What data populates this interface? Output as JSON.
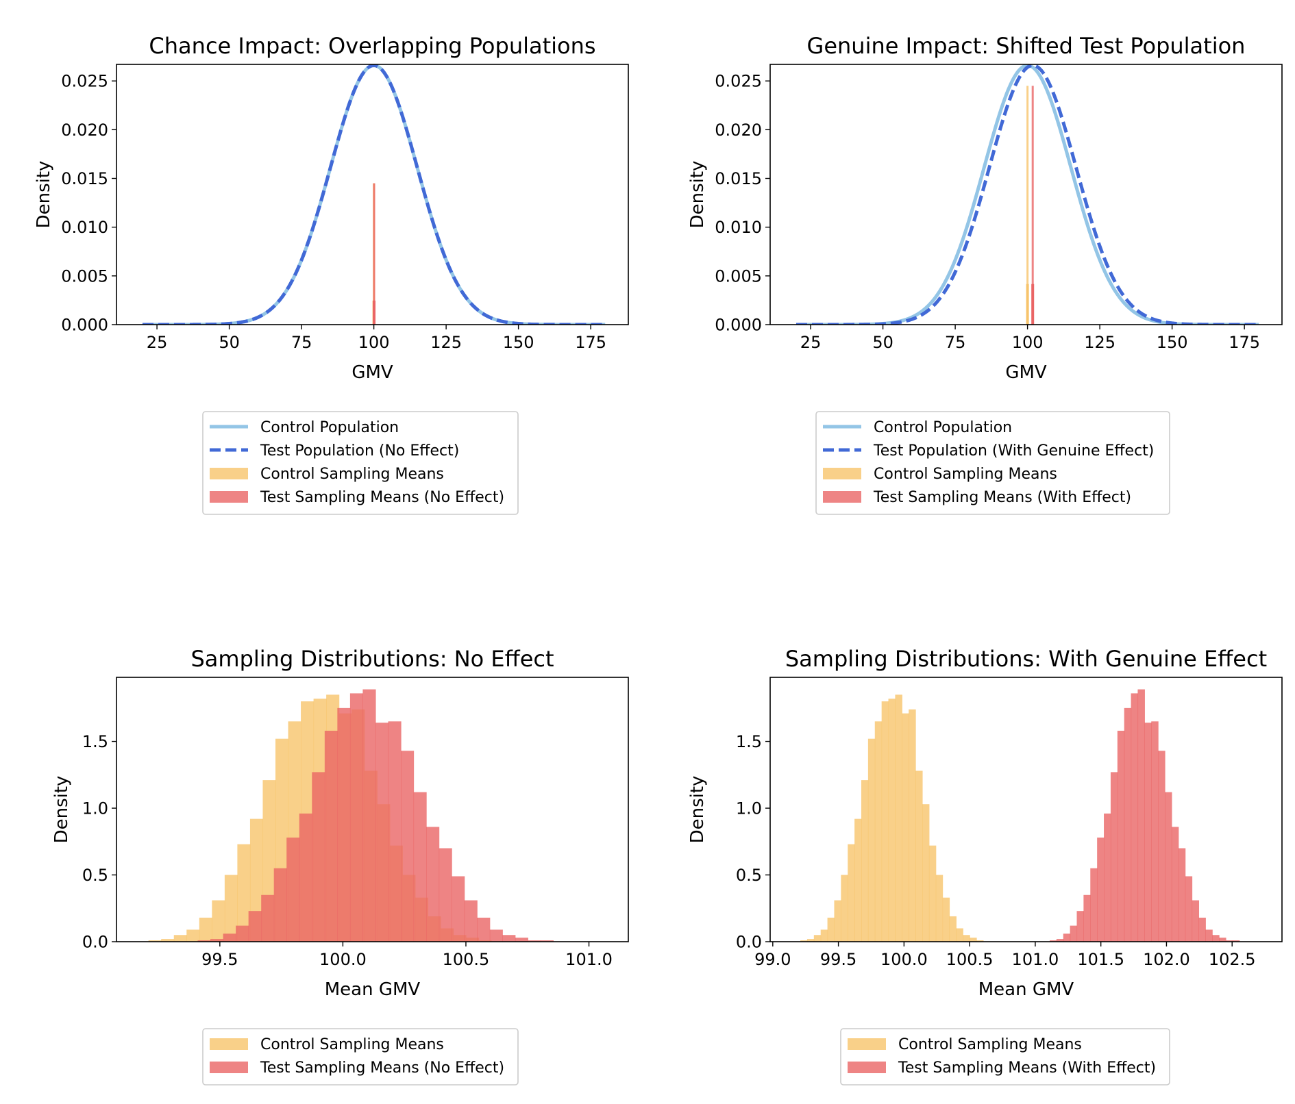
{
  "colors": {
    "control_line": "#93c5e6",
    "test_line": "#4169d6",
    "control_hist": "#f7c46c",
    "test_hist": "#ea6565",
    "overlap_hist": "#ee6a3c"
  },
  "chart_data": [
    {
      "type": "line",
      "title": "Chance Impact: Overlapping Populations",
      "xlabel": "GMV",
      "ylabel": "Density",
      "xlim": [
        11,
        188
      ],
      "ylim": [
        0,
        0.0267
      ],
      "xticks": [
        25,
        50,
        75,
        100,
        125,
        150,
        175
      ],
      "yticks": [
        0.0,
        0.005,
        0.01,
        0.015,
        0.02,
        0.025
      ],
      "ytick_labels": [
        "0.000",
        "0.005",
        "0.010",
        "0.015",
        "0.020",
        "0.025"
      ],
      "series": [
        {
          "name": "Control Population",
          "kind": "normal_pdf",
          "mean": 100,
          "sd": 15,
          "x_range": [
            20,
            180
          ],
          "style": "solid",
          "color_key": "control_line"
        },
        {
          "name": "Test Population (No Effect)",
          "kind": "normal_pdf",
          "mean": 100,
          "sd": 15,
          "x_range": [
            20,
            180
          ],
          "style": "dashed",
          "color_key": "test_line"
        },
        {
          "name": "Control Sampling Means",
          "kind": "spike",
          "x": 100.0,
          "height": 0.0145,
          "color_key": "control_hist"
        },
        {
          "name": "Test Sampling Means (No Effect)",
          "kind": "spike",
          "x": 100.1,
          "height": 0.0145,
          "color_key": "test_hist"
        }
      ],
      "legend": {
        "placement": "below",
        "entries": [
          "Control Population",
          "Test Population (No Effect)",
          "Control Sampling Means",
          "Test Sampling Means (No Effect)"
        ]
      }
    },
    {
      "type": "line",
      "title": "Genuine Impact: Shifted Test Population",
      "xlabel": "GMV",
      "ylabel": "Density",
      "xlim": [
        11,
        188
      ],
      "ylim": [
        0,
        0.0267
      ],
      "xticks": [
        25,
        50,
        75,
        100,
        125,
        150,
        175
      ],
      "yticks": [
        0.0,
        0.005,
        0.01,
        0.015,
        0.02,
        0.025
      ],
      "ytick_labels": [
        "0.000",
        "0.005",
        "0.010",
        "0.015",
        "0.020",
        "0.025"
      ],
      "series": [
        {
          "name": "Control Population",
          "kind": "normal_pdf",
          "mean": 100,
          "sd": 15,
          "x_range": [
            20,
            180
          ],
          "style": "solid",
          "color_key": "control_line"
        },
        {
          "name": "Test Population (With Genuine Effect)",
          "kind": "normal_pdf",
          "mean": 101.8,
          "sd": 15,
          "x_range": [
            20,
            180
          ],
          "style": "dashed",
          "color_key": "test_line"
        },
        {
          "name": "Control Sampling Means",
          "kind": "spike",
          "x": 100.0,
          "height": 0.0245,
          "color_key": "control_hist"
        },
        {
          "name": "Test Sampling Means (With Effect)",
          "kind": "spike",
          "x": 101.8,
          "height": 0.0245,
          "color_key": "test_hist"
        }
      ],
      "legend": {
        "placement": "below",
        "entries": [
          "Control Population",
          "Test Population (With Genuine Effect)",
          "Control Sampling Means",
          "Test Sampling Means (With Effect)"
        ]
      }
    },
    {
      "type": "bar",
      "subtype": "histogram",
      "title": "Sampling Distributions: No Effect",
      "xlabel": "Mean GMV",
      "ylabel": "Density",
      "xlim": [
        99.08,
        101.16
      ],
      "ylim": [
        0,
        1.98
      ],
      "xticks": [
        99.5,
        100.0,
        100.5,
        101.0
      ],
      "xtick_labels": [
        "99.5",
        "100.0",
        "100.5",
        "101.0"
      ],
      "yticks": [
        0.0,
        0.5,
        1.0,
        1.5
      ],
      "ytick_labels": [
        "0.0",
        "0.5",
        "1.0",
        "1.5"
      ],
      "series": [
        {
          "name": "Control Sampling Means",
          "color_key": "control_hist",
          "bin_start": 99.21,
          "bin_width": 0.0516,
          "values": [
            0.01,
            0.02,
            0.05,
            0.09,
            0.18,
            0.31,
            0.5,
            0.73,
            0.92,
            1.21,
            1.52,
            1.65,
            1.8,
            1.82,
            1.85,
            1.71,
            1.74,
            1.28,
            1.03,
            0.72,
            0.5,
            0.33,
            0.19,
            0.1,
            0.05,
            0.03,
            0.01
          ]
        },
        {
          "name": "Test Sampling Means (No Effect)",
          "color_key": "test_hist",
          "bin_start": 99.41,
          "bin_width": 0.0516,
          "values": [
            0.01,
            0.02,
            0.06,
            0.12,
            0.23,
            0.35,
            0.55,
            0.78,
            0.96,
            1.27,
            1.58,
            1.75,
            1.86,
            1.89,
            1.64,
            1.65,
            1.43,
            1.12,
            0.86,
            0.7,
            0.49,
            0.31,
            0.18,
            0.09,
            0.05,
            0.03,
            0.01,
            0.01
          ]
        }
      ],
      "legend": {
        "placement": "below",
        "entries": [
          "Control Sampling Means",
          "Test Sampling Means (No Effect)"
        ]
      }
    },
    {
      "type": "bar",
      "subtype": "histogram",
      "title": "Sampling Distributions: With Genuine Effect",
      "xlabel": "Mean GMV",
      "ylabel": "Density",
      "xlim": [
        98.98,
        102.88
      ],
      "ylim": [
        0,
        1.98
      ],
      "xticks": [
        99.0,
        99.5,
        100.0,
        100.5,
        101.0,
        101.5,
        102.0,
        102.5
      ],
      "xtick_labels": [
        "99.0",
        "99.5",
        "100.0",
        "100.5",
        "101.0",
        "101.5",
        "102.0",
        "102.5"
      ],
      "yticks": [
        0.0,
        0.5,
        1.0,
        1.5
      ],
      "ytick_labels": [
        "0.0",
        "0.5",
        "1.0",
        "1.5"
      ],
      "series": [
        {
          "name": "Control Sampling Means",
          "color_key": "control_hist",
          "bin_start": 99.21,
          "bin_width": 0.0516,
          "values": [
            0.01,
            0.02,
            0.05,
            0.09,
            0.18,
            0.31,
            0.5,
            0.73,
            0.92,
            1.21,
            1.52,
            1.65,
            1.8,
            1.82,
            1.85,
            1.71,
            1.74,
            1.28,
            1.03,
            0.72,
            0.5,
            0.33,
            0.19,
            0.1,
            0.05,
            0.03,
            0.01
          ]
        },
        {
          "name": "Test Sampling Means (With Effect)",
          "color_key": "test_hist",
          "bin_start": 101.11,
          "bin_width": 0.0516,
          "values": [
            0.01,
            0.02,
            0.06,
            0.12,
            0.23,
            0.35,
            0.55,
            0.78,
            0.96,
            1.27,
            1.58,
            1.75,
            1.86,
            1.89,
            1.64,
            1.65,
            1.43,
            1.12,
            0.86,
            0.7,
            0.49,
            0.31,
            0.18,
            0.09,
            0.05,
            0.03,
            0.01,
            0.01
          ]
        }
      ],
      "legend": {
        "placement": "below",
        "entries": [
          "Control Sampling Means",
          "Test Sampling Means (With Effect)"
        ]
      }
    }
  ]
}
